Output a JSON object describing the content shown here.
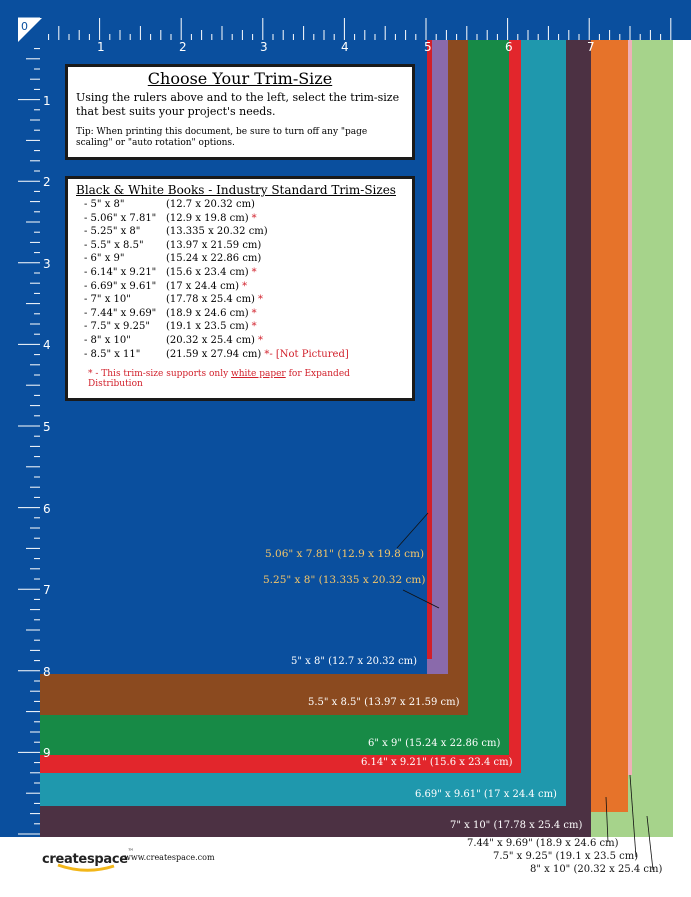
{
  "ruler": {
    "origin": "0",
    "top_numbers": [
      "1",
      "2",
      "3",
      "4",
      "5",
      "6",
      "7"
    ],
    "left_numbers": [
      "1",
      "2",
      "3",
      "4",
      "5",
      "6",
      "7",
      "8",
      "9"
    ]
  },
  "colors": {
    "blue_5x8": "#0a4f9e",
    "red_5_06x7_81": "#d11f2a",
    "purple_5_25x8": "#8a6aab",
    "brown_5_5x8_5": "#8b4a1f",
    "green_6x9": "#178a46",
    "red_6_14x9_21": "#e2262c",
    "teal_6_69x9_61": "#1f98ad",
    "plum_7x10": "#4c3143",
    "orange_7_44x9_69": "#e6732a",
    "pink_7_5x9_25": "#efb0b8",
    "lightgreen_8x10": "#a6d38b"
  },
  "info_box": {
    "title": "Choose Your Trim-Size",
    "instructions": "Using the rulers above and to the left, select the trim-size that best suits your project's needs.",
    "tip": "Tip: When printing this document, be sure to turn off any \"page scaling\" or \"auto rotation\" options."
  },
  "sizes_box": {
    "title": "Black & White Books - Industry Standard Trim-Sizes",
    "rows": [
      {
        "inch": "- 5\" x 8\"",
        "cm": "(12.7 x 20.32 cm)",
        "star": "",
        "extra": ""
      },
      {
        "inch": "- 5.06\" x 7.81\"",
        "cm": "(12.9 x 19.8 cm)",
        "star": "*",
        "extra": ""
      },
      {
        "inch": "- 5.25\" x 8\"",
        "cm": "(13.335 x 20.32 cm)",
        "star": "",
        "extra": ""
      },
      {
        "inch": "- 5.5\" x 8.5\"",
        "cm": "(13.97 x 21.59 cm)",
        "star": "",
        "extra": ""
      },
      {
        "inch": "- 6\" x 9\"",
        "cm": "(15.24 x 22.86 cm)",
        "star": "",
        "extra": ""
      },
      {
        "inch": "- 6.14\" x 9.21\"",
        "cm": "(15.6 x 23.4 cm)",
        "star": "*",
        "extra": ""
      },
      {
        "inch": "- 6.69\" x 9.61\"",
        "cm": "(17 x 24.4 cm)",
        "star": "*",
        "extra": ""
      },
      {
        "inch": "- 7\" x 10\"",
        "cm": "(17.78 x 25.4 cm)",
        "star": "*",
        "extra": ""
      },
      {
        "inch": "- 7.44\" x 9.69\"",
        "cm": "(18.9 x 24.6 cm)",
        "star": "*",
        "extra": ""
      },
      {
        "inch": "- 7.5\" x 9.25\"",
        "cm": "(19.1 x 23.5 cm)",
        "star": "*",
        "extra": ""
      },
      {
        "inch": "- 8\" x 10\"",
        "cm": "(20.32 x 25.4 cm)",
        "star": "*",
        "extra": ""
      },
      {
        "inch": "- 8.5\" x 11\"",
        "cm": "(21.59 x 27.94 cm)",
        "star": "*",
        "extra": " - [Not Pictured]"
      }
    ],
    "footnote_star": "*",
    "footnote_pre": " - This trim-size supports only ",
    "footnote_link": "white paper",
    "footnote_post": " for Expanded Distribution"
  },
  "labels": {
    "s5_06": "5.06\" x 7.81\" (12.9 x 19.8 cm)",
    "s5_25": "5.25\" x 8\" (13.335 x 20.32 cm)",
    "s5": "5\" x 8\" (12.7 x 20.32 cm)",
    "s5_5": "5.5\" x 8.5\" (13.97 x 21.59 cm)",
    "s6": "6\" x 9\" (15.24 x 22.86 cm)",
    "s6_14": "6.14\" x 9.21\" (15.6 x 23.4 cm)",
    "s6_69": "6.69\" x 9.61\" (17 x 24.4 cm)",
    "s7": "7\" x 10\" (17.78 x 25.4 cm)",
    "s7_44": "7.44\" x 9.69\" (18.9 x 24.6 cm)",
    "s7_5": "7.5\" x 9.25\" (19.1 x 23.5 cm)",
    "s8": "8\" x 10\" (20.32 x 25.4 cm)"
  },
  "footer": {
    "brand": "createspace",
    "tm": "™",
    "url": "www.createspace.com"
  }
}
